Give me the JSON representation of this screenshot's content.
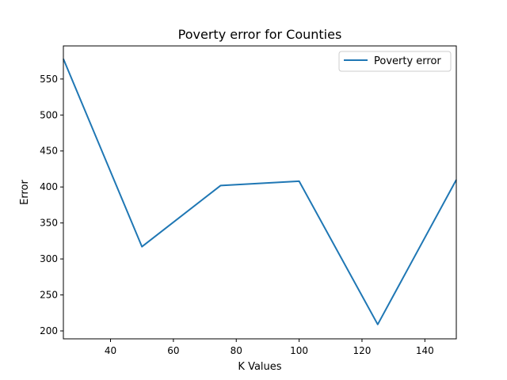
{
  "chart_data": {
    "type": "line",
    "title": "Poverty error for Counties",
    "xlabel": "K Values",
    "ylabel": "Error",
    "xlim": [
      25,
      150
    ],
    "ylim": [
      189,
      596
    ],
    "xticks": [
      40,
      60,
      80,
      100,
      120,
      140
    ],
    "yticks": [
      200,
      250,
      300,
      350,
      400,
      450,
      500,
      550
    ],
    "grid": false,
    "legend_position": "upper right",
    "series": [
      {
        "name": "Poverty error",
        "color": "#1f77b4",
        "x": [
          25,
          50,
          75,
          100,
          125,
          150
        ],
        "y": [
          578,
          317,
          402,
          408,
          209,
          410
        ]
      }
    ]
  }
}
